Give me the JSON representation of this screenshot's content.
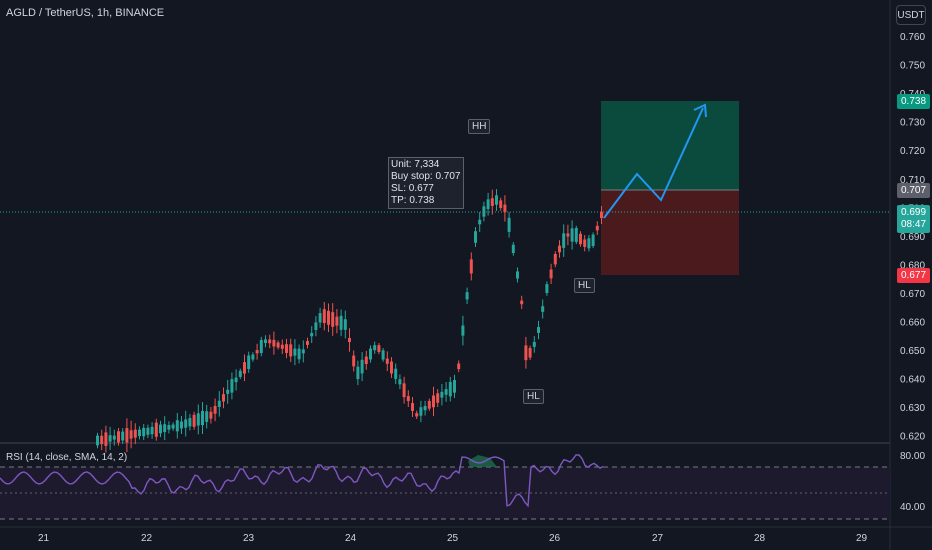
{
  "header": {
    "title": "AGLD / TetherUS, 1h, BINANCE"
  },
  "toolbar": {
    "currency": "USDT"
  },
  "rsi": {
    "label": "RSI (14, close, SMA, 14, 2)",
    "levels": [
      "80.00",
      "40.00"
    ]
  },
  "price_axis": [
    "0.760",
    "0.750",
    "0.740",
    "0.730",
    "0.720",
    "0.710",
    "0.700",
    "0.690",
    "0.680",
    "0.670",
    "0.660",
    "0.650",
    "0.640",
    "0.630",
    "0.620"
  ],
  "tags": {
    "tp": "0.738",
    "entry": "0.707",
    "last": "0.699",
    "countdown": "08:47",
    "sl": "0.677"
  },
  "annotations": {
    "hh": "HH",
    "hl1": "HL",
    "hl2": "HL"
  },
  "position_box": {
    "unit": "Unit: 7,334",
    "buy_stop": "Buy stop: 0.707",
    "sl": "SL: 0.677",
    "tp": "TP: 0.738"
  },
  "time_axis": [
    "21",
    "22",
    "23",
    "24",
    "25",
    "26",
    "27",
    "28",
    "29"
  ],
  "colors": {
    "up": "#26a69a",
    "down": "#ef5350",
    "target": "#0b4b3e",
    "stop": "#4a1a1d",
    "arrow": "#2196f3",
    "rsi": "#7e57c2"
  }
}
